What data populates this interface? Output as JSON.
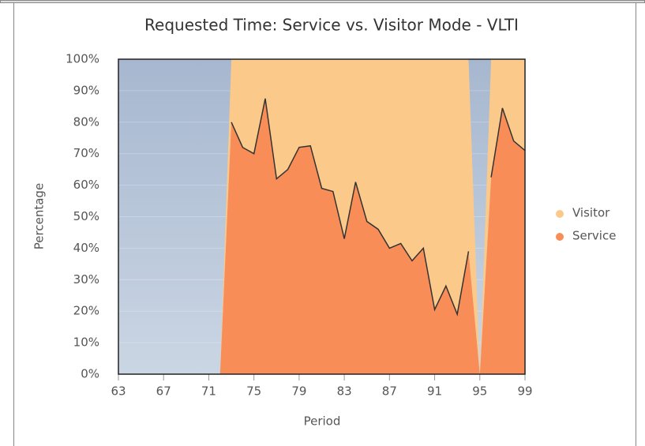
{
  "chart_data": {
    "type": "area",
    "title": "Requested Time: Service vs. Visitor Mode - VLTI",
    "x_label": "Period",
    "y_label": "Percentage",
    "x": [
      72,
      73,
      74,
      75,
      76,
      77,
      78,
      79,
      80,
      81,
      82,
      83,
      84,
      85,
      86,
      87,
      88,
      89,
      90,
      91,
      92,
      93,
      94,
      95,
      96,
      97,
      98,
      99
    ],
    "series": [
      {
        "name": "Visitor",
        "color": "#fbc98a",
        "values": [
          null,
          20,
          28,
          30,
          12.5,
          38,
          35,
          28,
          27.5,
          41,
          42,
          57,
          39,
          51.5,
          54,
          60,
          58.5,
          64,
          60,
          79.5,
          72,
          81,
          61,
          null,
          37.5,
          15.5,
          26,
          29
        ]
      },
      {
        "name": "Service",
        "color": "#f98d58",
        "values": [
          null,
          80,
          72,
          70,
          87.5,
          62,
          65,
          72,
          72.5,
          59,
          58,
          43,
          61,
          48.5,
          46,
          40,
          41.5,
          36,
          40,
          20.5,
          28,
          19,
          39,
          null,
          62.5,
          84.5,
          74,
          71
        ]
      }
    ],
    "xlim": [
      63,
      99
    ],
    "xticks": [
      63,
      67,
      71,
      75,
      79,
      83,
      87,
      91,
      95,
      99
    ],
    "ylim": [
      0,
      100
    ],
    "yticks": [
      {
        "value": 0,
        "label": "0%"
      },
      {
        "value": 10,
        "label": "10%"
      },
      {
        "value": 20,
        "label": "20%"
      },
      {
        "value": 30,
        "label": "30%"
      },
      {
        "value": 40,
        "label": "40%"
      },
      {
        "value": 50,
        "label": "50%"
      },
      {
        "value": 60,
        "label": "60%"
      },
      {
        "value": 70,
        "label": "70%"
      },
      {
        "value": 80,
        "label": "80%"
      },
      {
        "value": 90,
        "label": "90%"
      },
      {
        "value": 100,
        "label": "100%"
      }
    ],
    "legend": "right",
    "line_color": "#333333"
  }
}
